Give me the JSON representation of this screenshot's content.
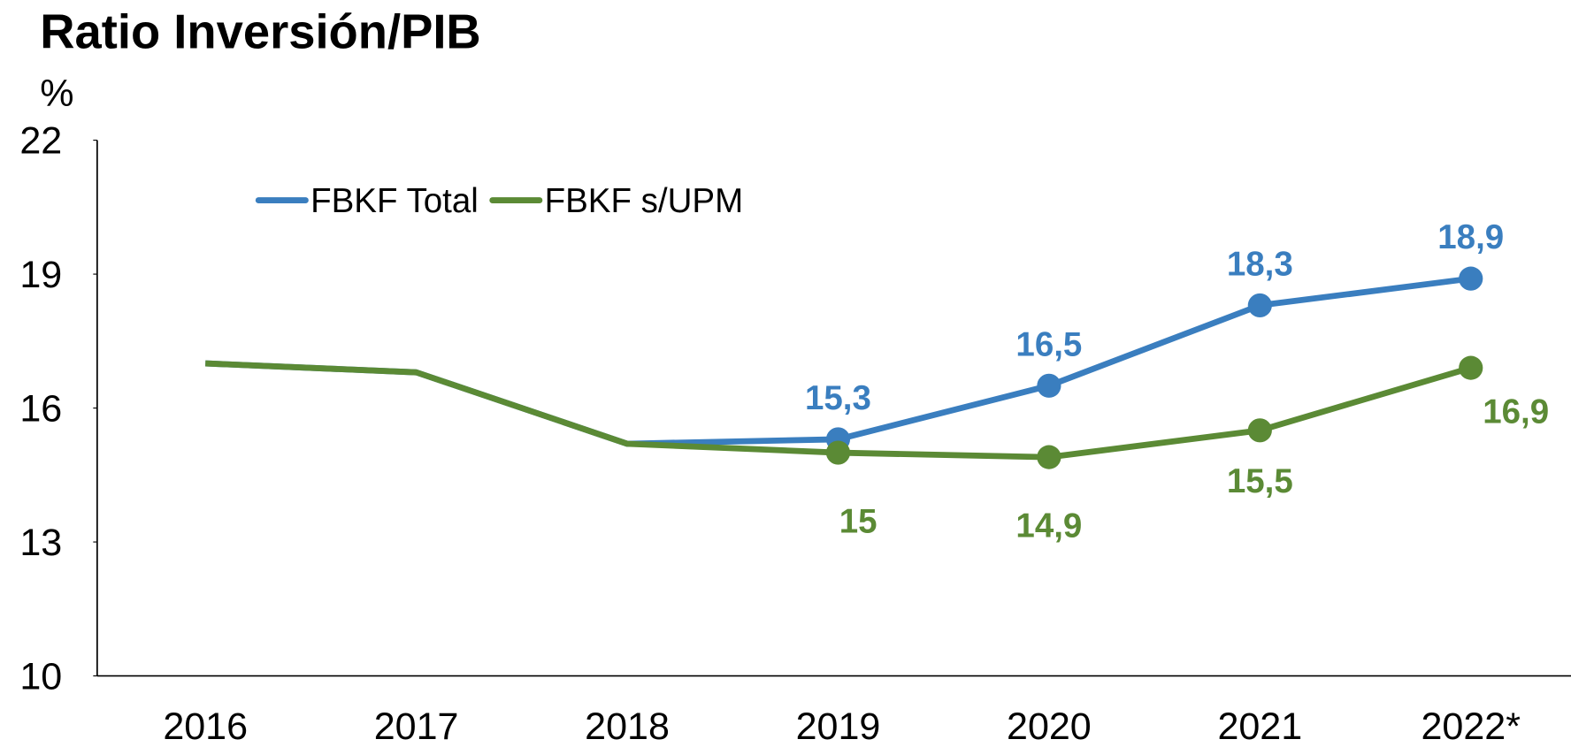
{
  "chart_data": {
    "type": "line",
    "title": "Ratio Inversión/PIB",
    "y_label": "%",
    "categories": [
      "2016",
      "2017",
      "2018",
      "2019",
      "2020",
      "2021",
      "2022*"
    ],
    "series": [
      {
        "name": "FBKF Total",
        "color": "#3a7ebf",
        "values": [
          17.0,
          16.8,
          15.2,
          15.3,
          16.5,
          18.3,
          18.9
        ],
        "value_labels": [
          null,
          null,
          null,
          "15,3",
          "16,5",
          "18,3",
          "18,9"
        ]
      },
      {
        "name": "FBKF s/UPM",
        "color": "#5b8a35",
        "values": [
          17.0,
          16.8,
          15.2,
          15,
          14.9,
          15.5,
          16.9
        ],
        "value_labels": [
          null,
          null,
          null,
          "15",
          "14,9",
          "15,5",
          "16,9"
        ]
      }
    ],
    "ylim": [
      10,
      22
    ],
    "yticks": [
      10,
      13,
      16,
      19,
      22
    ],
    "legend": "top-left"
  }
}
